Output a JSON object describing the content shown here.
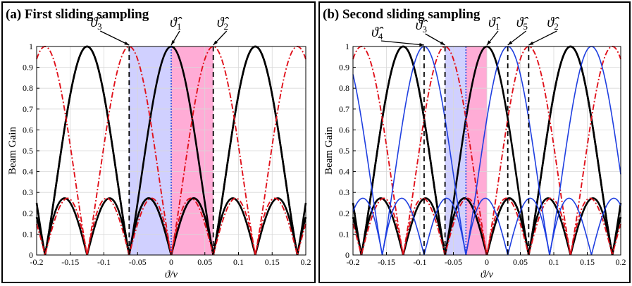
{
  "colors": {
    "black_beam": "#000000",
    "red_beam": "#e0111b",
    "blue_beam": "#1f3fe0",
    "blue_region": "#c8c8ff",
    "pink_region": "#ff9ecf",
    "center_dotted": "#1f3fe0"
  },
  "chart_data": [
    {
      "type": "line",
      "title": "(a) First sliding sampling",
      "xlabel": "ϑ/ν",
      "ylabel": "Beam Gain",
      "xlim": [
        -0.2,
        0.2
      ],
      "ylim": [
        0,
        1
      ],
      "x_ticks": [
        "-0.2",
        "-0.15",
        "-0.1",
        "-0.05",
        "0",
        "0.05",
        "0.1",
        "0.15",
        "0.2"
      ],
      "y_ticks": [
        "0",
        "0.1",
        "0.2",
        "0.3",
        "0.4",
        "0.5",
        "0.6",
        "0.7",
        "0.8",
        "0.9",
        "1"
      ],
      "grid": true,
      "beam_model": "|sin(2πNx)/(N sin(πx))| with N=4, peak spacing 0.125",
      "series": [
        {
          "name": "beam",
          "style": "solid",
          "color": "black",
          "centers": [
            -0.125,
            0,
            0.125
          ]
        },
        {
          "name": "beam",
          "style": "dash-dot",
          "color": "red",
          "centers": [
            -0.0625,
            0.0625
          ]
        }
      ],
      "shaded_regions": [
        {
          "from": -0.0625,
          "to": 0,
          "color": "blue"
        },
        {
          "from": 0,
          "to": 0.0625,
          "color": "pink"
        }
      ],
      "vertical_lines": [
        {
          "x": -0.0625,
          "style": "dashed"
        },
        {
          "x": 0,
          "style": "dotted-blue"
        },
        {
          "x": 0.0625,
          "style": "dashed"
        }
      ],
      "annotations": [
        {
          "text": "ϑ̂",
          "sub": "3",
          "x": -0.0625
        },
        {
          "text": "ϑ̂",
          "sub": "1",
          "x": 0
        },
        {
          "text": "ϑ̂",
          "sub": "2",
          "x": 0.0625
        }
      ]
    },
    {
      "type": "line",
      "title": "(b) Second sliding sampling",
      "xlabel": "ϑ/ν",
      "ylabel": "Beam Gain",
      "xlim": [
        -0.2,
        0.2
      ],
      "ylim": [
        0,
        1
      ],
      "x_ticks": [
        "-0.2",
        "-0.15",
        "-0.1",
        "-0.05",
        "0",
        "0.05",
        "0.1",
        "0.15",
        "0.2"
      ],
      "y_ticks": [
        "0",
        "0.1",
        "0.2",
        "0.3",
        "0.4",
        "0.5",
        "0.6",
        "0.7",
        "0.8",
        "0.9",
        "1"
      ],
      "grid": true,
      "beam_model": "|sin(2πNx)/(N sin(πx))| with N=4, peak spacing 0.125",
      "series": [
        {
          "name": "beam",
          "style": "solid",
          "color": "black",
          "centers": [
            -0.125,
            0,
            0.125
          ]
        },
        {
          "name": "beam",
          "style": "dash-dot",
          "color": "red",
          "centers": [
            -0.0625,
            0.0625
          ]
        },
        {
          "name": "beam",
          "style": "solid",
          "color": "blue",
          "centers": [
            -0.09375,
            0.03125
          ]
        }
      ],
      "shaded_regions": [
        {
          "from": -0.0625,
          "to": -0.03125,
          "color": "blue"
        },
        {
          "from": -0.03125,
          "to": 0,
          "color": "pink"
        }
      ],
      "vertical_lines": [
        {
          "x": -0.09375,
          "style": "dashed"
        },
        {
          "x": -0.0625,
          "style": "dashed"
        },
        {
          "x": -0.03125,
          "style": "dotted-blue"
        },
        {
          "x": 0.03125,
          "style": "dashed"
        },
        {
          "x": 0.0625,
          "style": "dashed"
        }
      ],
      "annotations": [
        {
          "text": "ϑ̂",
          "sub": "4",
          "x": -0.09375
        },
        {
          "text": "ϑ̂",
          "sub": "3",
          "x": -0.0625
        },
        {
          "text": "ϑ̂",
          "sub": "1",
          "x": 0
        },
        {
          "text": "ϑ̂",
          "sub": "5",
          "x": 0.03125
        },
        {
          "text": "ϑ̂",
          "sub": "2",
          "x": 0.0625
        }
      ]
    }
  ]
}
